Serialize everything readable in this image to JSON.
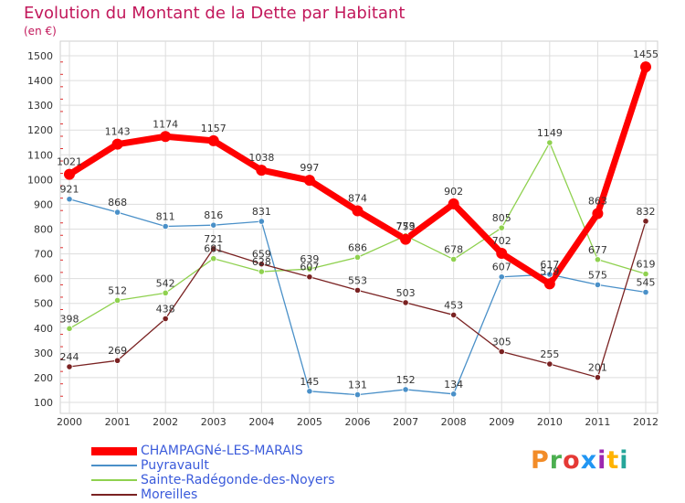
{
  "header": {
    "title": "Evolution du Montant de la Dette par Habitant",
    "subtitle": "(en €)"
  },
  "logo": {
    "text": "Proxiti",
    "colors": [
      "#f28c28",
      "#4caf50",
      "#e53935",
      "#2196f3",
      "#9c27b0",
      "#ffb300",
      "#26a69a"
    ]
  },
  "chart_data": {
    "type": "line",
    "title": "Evolution du Montant de la Dette par Habitant",
    "subtitle": "(en €)",
    "x": [
      "2000",
      "2001",
      "2002",
      "2003",
      "2004",
      "2005",
      "2006",
      "2007",
      "2008",
      "2009",
      "2010",
      "2011",
      "2012"
    ],
    "ylim": [
      100,
      1500
    ],
    "yticks": [
      100,
      200,
      300,
      400,
      500,
      600,
      700,
      800,
      900,
      1000,
      1100,
      1200,
      1300,
      1400,
      1500
    ],
    "grid": true,
    "legend_position": "bottom-left",
    "series": [
      {
        "name": "CHAMPAGNé-LES-MARAIS",
        "color": "#ff0000",
        "values": [
          1021,
          1143,
          1174,
          1157,
          1038,
          997,
          874,
          759,
          902,
          702,
          579,
          863,
          1455
        ],
        "labels": [
          "1021",
          "1143",
          "1174",
          "1157",
          "1038",
          "997",
          "874",
          "759",
          "902",
          "702",
          "579",
          "863",
          "1455"
        ]
      },
      {
        "name": "Puyravault",
        "color": "#4a90c8",
        "values": [
          921,
          868,
          811,
          816,
          831,
          145,
          131,
          152,
          134,
          607,
          617,
          575,
          545
        ],
        "labels": [
          "921",
          "868",
          "811",
          "816",
          "831",
          "145",
          "131",
          "152",
          "134",
          "607",
          "617",
          "575",
          "545"
        ]
      },
      {
        "name": "Sainte-Radégonde-des-Noyers",
        "color": "#8fd14f",
        "values": [
          398,
          512,
          542,
          681,
          628,
          639,
          686,
          773,
          678,
          805,
          1149,
          677,
          619
        ],
        "labels": [
          "398",
          "512",
          "542",
          "681",
          "628",
          "639",
          "686",
          "773",
          "678",
          "805",
          "1149",
          "677",
          "619"
        ]
      },
      {
        "name": "Moreilles",
        "color": "#7a2222",
        "values": [
          244,
          269,
          438,
          721,
          659,
          607,
          553,
          503,
          453,
          305,
          255,
          201,
          832
        ],
        "labels": [
          "244",
          "269",
          "438",
          "721",
          "659",
          "607",
          "553",
          "503",
          "453",
          "305",
          "255",
          "201",
          "832"
        ]
      }
    ]
  }
}
